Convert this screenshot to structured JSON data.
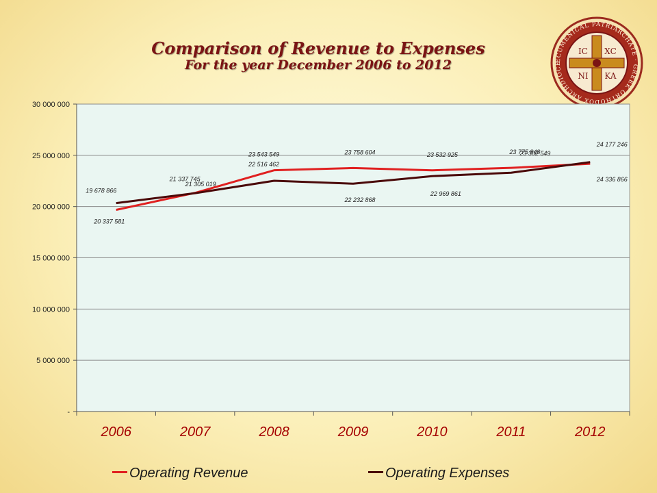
{
  "header": {
    "title": "Comparison of Revenue to Expenses",
    "subtitle": "For the year December 2006 to 2012"
  },
  "seal": {
    "ring_text": "ECUMENICAL PATRIARCHATE · GREEK ORTHODOX ARCHDIOCESE OF AMERICA",
    "cross_letters": [
      "IC",
      "XC",
      "NI",
      "KA"
    ]
  },
  "colors": {
    "revenue": "#e02020",
    "expenses": "#4a0808",
    "plot_bg": "#eaf6f2",
    "title": "#7a1414"
  },
  "chart_data": {
    "type": "line",
    "title": "Comparison of Revenue to Expenses",
    "subtitle": "For the year December 2006 to 2012",
    "categories": [
      "2006",
      "2007",
      "2008",
      "2009",
      "2010",
      "2011",
      "2012"
    ],
    "series": [
      {
        "name": "Operating Revenue",
        "values": [
          19678866,
          21337745,
          23543549,
          23758604,
          23532925,
          23775848,
          24177246
        ],
        "labels": [
          "19 678 866",
          "21 337 745",
          "23 543 549",
          "23 758 604",
          "23 532 925",
          "23 775 848",
          "24 177 246"
        ]
      },
      {
        "name": "Operating Expenses",
        "values": [
          20337581,
          21305019,
          22516462,
          22232868,
          22969861,
          23302549,
          24336866
        ],
        "labels": [
          "20 337 581",
          "21 305 019",
          "22 516 462",
          "22 232 868",
          "22 969 861",
          "23 302 549",
          "24 336 866"
        ]
      }
    ],
    "ylim": [
      0,
      30000000
    ],
    "yticks": [
      0,
      5000000,
      10000000,
      15000000,
      20000000,
      25000000,
      30000000
    ],
    "ytick_labels": [
      "-",
      "5 000 000",
      "10 000 000",
      "15 000 000",
      "20 000 000",
      "25 000 000",
      "30 000 000"
    ],
    "xlabel": "",
    "ylabel": "",
    "grid": true,
    "legend": "bottom"
  }
}
